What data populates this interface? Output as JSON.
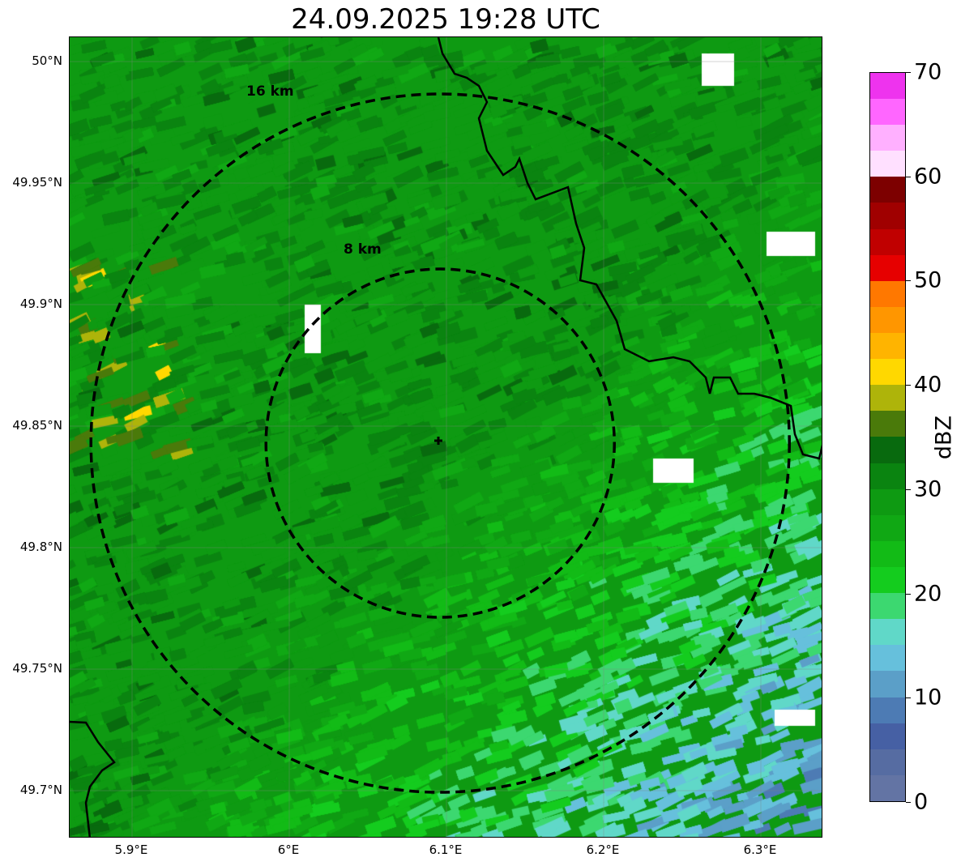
{
  "title": "24.09.2025 19:28 UTC",
  "map": {
    "lon_range": [
      5.86,
      6.34
    ],
    "lat_range": [
      49.68,
      50.01
    ],
    "x_ticks": [
      "5.9°E",
      "6°E",
      "6.1°E",
      "6.2°E",
      "6.3°E"
    ],
    "x_tick_values": [
      5.9,
      6.0,
      6.1,
      6.2,
      6.3
    ],
    "y_ticks": [
      "50°N",
      "49.95°N",
      "49.9°N",
      "49.85°N",
      "49.8°N",
      "49.75°N",
      "49.7°N"
    ],
    "y_tick_values": [
      50.0,
      49.95,
      49.9,
      49.85,
      49.8,
      49.75,
      49.7
    ],
    "radar_center": {
      "lon": 6.096,
      "lat": 49.843
    },
    "range_rings": [
      {
        "label": "8 km",
        "km": 8
      },
      {
        "label": "16 km",
        "km": 16
      }
    ]
  },
  "colorbar": {
    "unit": "dBZ",
    "min": 0,
    "max": 70,
    "step": 2.5,
    "tick_labels": [
      "0",
      "10",
      "20",
      "30",
      "40",
      "50",
      "60",
      "70"
    ],
    "colors": [
      "#6374a4",
      "#566ca2",
      "#4660a4",
      "#4d7bb4",
      "#5b9fc8",
      "#66c0dc",
      "#60d8c8",
      "#3cd870",
      "#14cc1e",
      "#12bb16",
      "#10a814",
      "#0e9a12",
      "#0a8410",
      "#086a0e",
      "#4a7a0a",
      "#aeb40a",
      "#ffd800",
      "#ffb400",
      "#ff9600",
      "#ff7800",
      "#e60000",
      "#c00000",
      "#a00000",
      "#7d0000",
      "#ffe0ff",
      "#ffb0ff",
      "#ff66ff",
      "#ee33ee"
    ]
  }
}
